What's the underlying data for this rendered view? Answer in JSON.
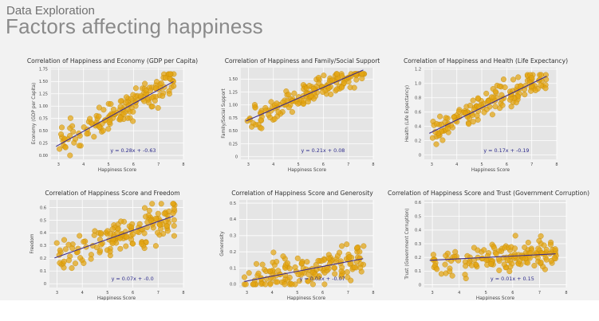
{
  "header": {
    "subtitle": "Data Exploration",
    "title": "Factors affecting happiness"
  },
  "colors": {
    "plot_bg": "#e5e5e5",
    "grid": "#ffffff",
    "point": "#e3a512",
    "point_edge": "#c48a06",
    "trend": "#3d2a8a",
    "equation": "#2c2a8c",
    "axis_text": "#444444"
  },
  "chart_data": [
    {
      "type": "scatter",
      "title": "Correlation of Happiness and Economy (GDP per Capita)",
      "xlabel": "Happiness Score",
      "ylabel": "Economy (GDP per Capita)",
      "xlim": [
        2.7,
        8
      ],
      "ylim": [
        -0.08,
        1.78
      ],
      "xticks": [
        3,
        4,
        5,
        6,
        7,
        8
      ],
      "yticks": [
        0,
        0.25,
        0.5,
        0.75,
        1,
        1.25,
        1.5,
        1.75
      ],
      "ytick_labels": [
        "0.00",
        "0.25",
        "0.50",
        "0.75",
        "1.00",
        "1.25",
        "1.50",
        "1.75"
      ],
      "trendline": {
        "slope": 0.28,
        "intercept": -0.63,
        "x_range": [
          2.9,
          7.6
        ]
      },
      "equation": "y = 0.28x + -0.63",
      "points": {
        "n": 155,
        "slope": 0.28,
        "intercept": -0.63,
        "noise": 0.24,
        "seed": 11,
        "ymin": 0,
        "ymax": 1.65
      }
    },
    {
      "type": "scatter",
      "title": "Correlation of Happiness and Family/Social Support",
      "xlabel": "Happiness Score",
      "ylabel": "Family/Social Support",
      "xlim": [
        2.7,
        8
      ],
      "ylim": [
        -0.05,
        1.72
      ],
      "xticks": [
        3,
        4,
        5,
        6,
        7,
        8
      ],
      "yticks": [
        0,
        0.25,
        0.5,
        0.75,
        1,
        1.25,
        1.5
      ],
      "ytick_labels": [
        "0",
        "0.25",
        "0.50",
        "0.75",
        "1.00",
        "1.25",
        "1.50"
      ],
      "trendline": {
        "slope": 0.21,
        "intercept": 0.08,
        "x_range": [
          2.9,
          7.6
        ]
      },
      "equation": "y = 0.21x + 0.08",
      "points": {
        "n": 155,
        "slope": 0.21,
        "intercept": 0.08,
        "noise": 0.2,
        "seed": 23,
        "ymin": 0,
        "ymax": 1.6
      }
    },
    {
      "type": "scatter",
      "title": "Correlation of Happiness and Health (Life Expectancy)",
      "xlabel": "Happiness Score",
      "ylabel": "Health (Life Expectancy)",
      "xlim": [
        2.7,
        8
      ],
      "ylim": [
        -0.06,
        1.22
      ],
      "xticks": [
        3,
        4,
        5,
        6,
        7,
        8
      ],
      "yticks": [
        0,
        0.2,
        0.4,
        0.6,
        0.8,
        1.0,
        1.2
      ],
      "ytick_labels": [
        "0",
        "0.2",
        "0.4",
        "0.6",
        "0.8",
        "1.0",
        "1.2"
      ],
      "trendline": {
        "slope": 0.17,
        "intercept": -0.19,
        "x_range": [
          2.9,
          7.6
        ]
      },
      "equation": "y = 0.17x + -0.19",
      "points": {
        "n": 155,
        "slope": 0.17,
        "intercept": -0.19,
        "noise": 0.15,
        "seed": 37,
        "ymin": 0,
        "ymax": 1.12
      }
    },
    {
      "type": "scatter",
      "title": "Correlation of Happiness Score and Freedom",
      "xlabel": "Happiness Score",
      "ylabel": "Freedom",
      "xlim": [
        2.7,
        8
      ],
      "ylim": [
        -0.03,
        0.66
      ],
      "xticks": [
        3,
        4,
        5,
        6,
        7,
        8
      ],
      "yticks": [
        0,
        0.1,
        0.2,
        0.3,
        0.4,
        0.5,
        0.6
      ],
      "ytick_labels": [
        "0",
        "0.1",
        "0.2",
        "0.3",
        "0.4",
        "0.5",
        "0.6"
      ],
      "trendline": {
        "slope": 0.07,
        "intercept": 0.0,
        "x_range": [
          2.9,
          7.6
        ]
      },
      "equation": "y = 0.07x + -0.0",
      "points": {
        "n": 155,
        "slope": 0.07,
        "intercept": 0.0,
        "noise": 0.12,
        "seed": 51,
        "ymin": 0,
        "ymax": 0.63
      }
    },
    {
      "type": "scatter",
      "title": "Correlation of Happiness Score and Generosity",
      "xlabel": "Happiness Score",
      "ylabel": "Generosity",
      "xlim": [
        2.7,
        8
      ],
      "ylim": [
        -0.02,
        0.52
      ],
      "xticks": [
        3,
        4,
        5,
        6,
        7,
        8
      ],
      "yticks": [
        0,
        0.1,
        0.2,
        0.3,
        0.4,
        0.5
      ],
      "ytick_labels": [
        "0.0",
        "0.1",
        "0.2",
        "0.3",
        "0.4",
        "0.5"
      ],
      "trendline": {
        "slope": 0.03,
        "intercept": -0.07,
        "x_range": [
          2.9,
          7.6
        ]
      },
      "equation": "y = 0.03x + -0.07",
      "points": {
        "n": 155,
        "slope": 0.03,
        "intercept": -0.07,
        "noise": 0.09,
        "seed": 67,
        "ymin": 0,
        "ymax": 0.45
      }
    },
    {
      "type": "scatter",
      "title": "Correlation of Happiness Score and Trust (Government Corruption)",
      "xlabel": "Happiness Score",
      "ylabel": "Trust (Government Corruption)",
      "xlim": [
        2.7,
        8
      ],
      "ylim": [
        -0.02,
        0.62
      ],
      "xticks": [
        3,
        4,
        5,
        6,
        7,
        8
      ],
      "yticks": [
        0,
        0.1,
        0.2,
        0.3,
        0.4,
        0.5,
        0.6
      ],
      "ytick_labels": [
        "0",
        "0.1",
        "0.2",
        "0.3",
        "0.4",
        "0.5",
        "0.6"
      ],
      "trendline": {
        "slope": 0.01,
        "intercept": 0.15,
        "x_range": [
          2.9,
          7.6
        ]
      },
      "equation": "y = 0.01x + 0.15",
      "points": {
        "n": 155,
        "slope": 0.01,
        "intercept": 0.15,
        "noise": 0.09,
        "seed": 83,
        "ymin": 0,
        "ymax": 0.56
      }
    }
  ]
}
